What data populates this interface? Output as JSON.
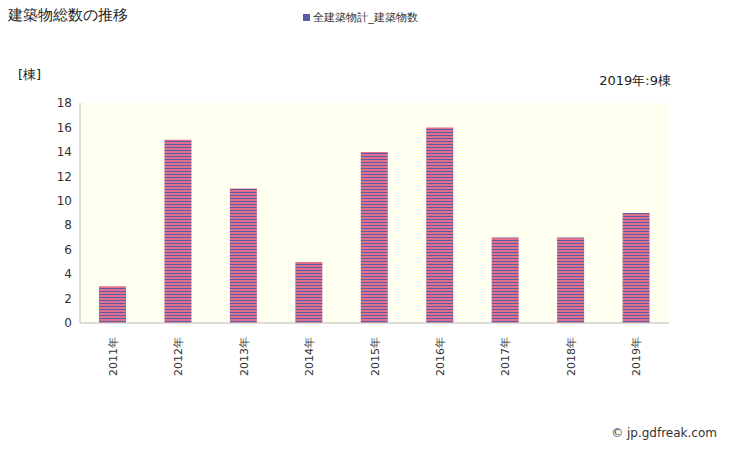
{
  "chart_data": {
    "type": "bar",
    "title": "建築物総数の推移",
    "y_label": "[棟]",
    "annotation": "2019年:9棟",
    "source": "© jp.gdfreak.com",
    "categories": [
      "2011年",
      "2012年",
      "2013年",
      "2014年",
      "2015年",
      "2016年",
      "2017年",
      "2018年",
      "2019年"
    ],
    "series": [
      {
        "name": "全建築物計_建築物数",
        "color": "#e0708c",
        "values": [
          3,
          15,
          11,
          5,
          14,
          16,
          7,
          7,
          9
        ]
      }
    ],
    "ylim": [
      0,
      18
    ],
    "yticks": [
      0,
      2,
      4,
      6,
      8,
      10,
      12,
      14,
      16,
      18
    ],
    "grid": false,
    "legend": "top"
  }
}
